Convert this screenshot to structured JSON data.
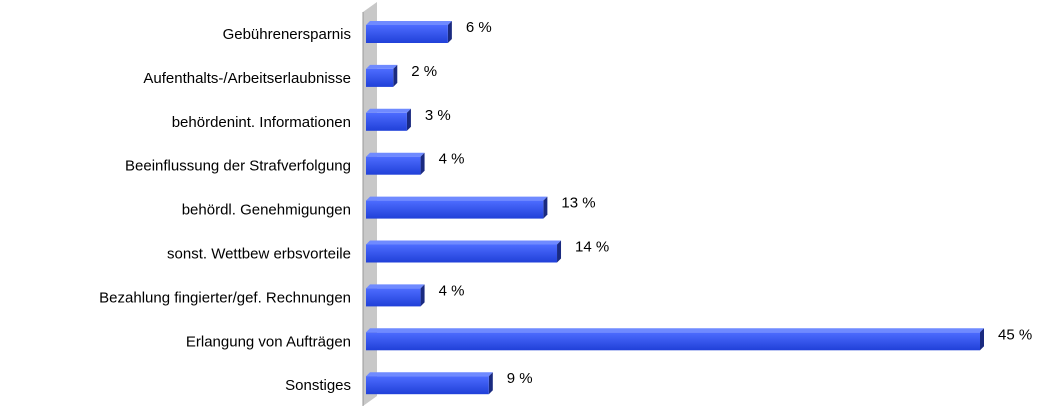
{
  "chart_data": {
    "type": "bar",
    "orientation": "horizontal",
    "categories": [
      "Gebührenersparnis",
      "Aufenthalts-/Arbeitserlaubnisse",
      "behördenint. Informationen",
      "Beeinflussung der Strafverfolgung",
      "behördl. Genehmigungen",
      "sonst. Wettbew erbsvorteile",
      "Bezahlung fingierter/gef. Rechnungen",
      "Erlangung von Aufträgen",
      "Sonstiges"
    ],
    "values": [
      6,
      2,
      3,
      4,
      13,
      14,
      4,
      45,
      9
    ],
    "value_labels": [
      "6 %",
      "2 %",
      "3 %",
      "4 %",
      "13 %",
      "14 %",
      "4 %",
      "45 %",
      "9 %"
    ],
    "color": "#3355ee"
  }
}
